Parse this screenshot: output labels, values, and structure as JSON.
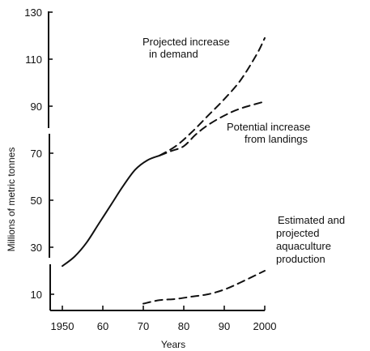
{
  "chart_data": {
    "type": "line",
    "xlabel": "Years",
    "ylabel": "Millions of metric tonnes",
    "xlim": [
      1947,
      2000
    ],
    "ylim": [
      0,
      130
    ],
    "x_ticks": [
      1950,
      1960,
      1970,
      1980,
      1990,
      2000
    ],
    "x_tick_labels": [
      "1950",
      "60",
      "70",
      "80",
      "90",
      "2000"
    ],
    "y_ticks": [
      10,
      30,
      50,
      70,
      90,
      110,
      130
    ],
    "y_tick_labels": [
      "10",
      "30",
      "50",
      "70",
      "90",
      "110",
      "130"
    ],
    "grid": false,
    "legend": "none",
    "series": [
      {
        "style": "solid",
        "x": [
          1950,
          1953,
          1956,
          1959,
          1962,
          1965,
          1968,
          1971,
          1974
        ],
        "y": [
          22,
          26,
          32,
          40,
          48,
          56,
          63,
          67,
          69
        ]
      },
      {
        "name": "Projected increase in demand",
        "style": "dashed",
        "x": [
          1974,
          1978,
          1982,
          1986,
          1990,
          1994,
          1998,
          2000
        ],
        "y": [
          69,
          73,
          79,
          86,
          93,
          101,
          112,
          119
        ]
      },
      {
        "name": "Potential increase from landings",
        "style": "dashed",
        "x": [
          1974,
          1977,
          1980,
          1983,
          1986,
          1990,
          1994,
          2000
        ],
        "y": [
          69,
          71,
          73,
          78,
          82,
          86,
          89,
          92
        ]
      },
      {
        "name": "Estimated and projected aquaculture production",
        "style": "dashed",
        "x": [
          1970,
          1974,
          1978,
          1982,
          1986,
          1990,
          1994,
          2000
        ],
        "y": [
          6,
          7.5,
          8,
          9,
          10,
          12,
          15,
          20
        ]
      }
    ],
    "annotations": [
      {
        "lines": [
          "Projected increase",
          "in demand"
        ],
        "series": 1
      },
      {
        "lines": [
          "Potential increase",
          "from landings"
        ],
        "series": 2
      },
      {
        "lines": [
          "Estimated and",
          "projected",
          "aquaculture",
          "production"
        ],
        "series": 3
      }
    ]
  }
}
